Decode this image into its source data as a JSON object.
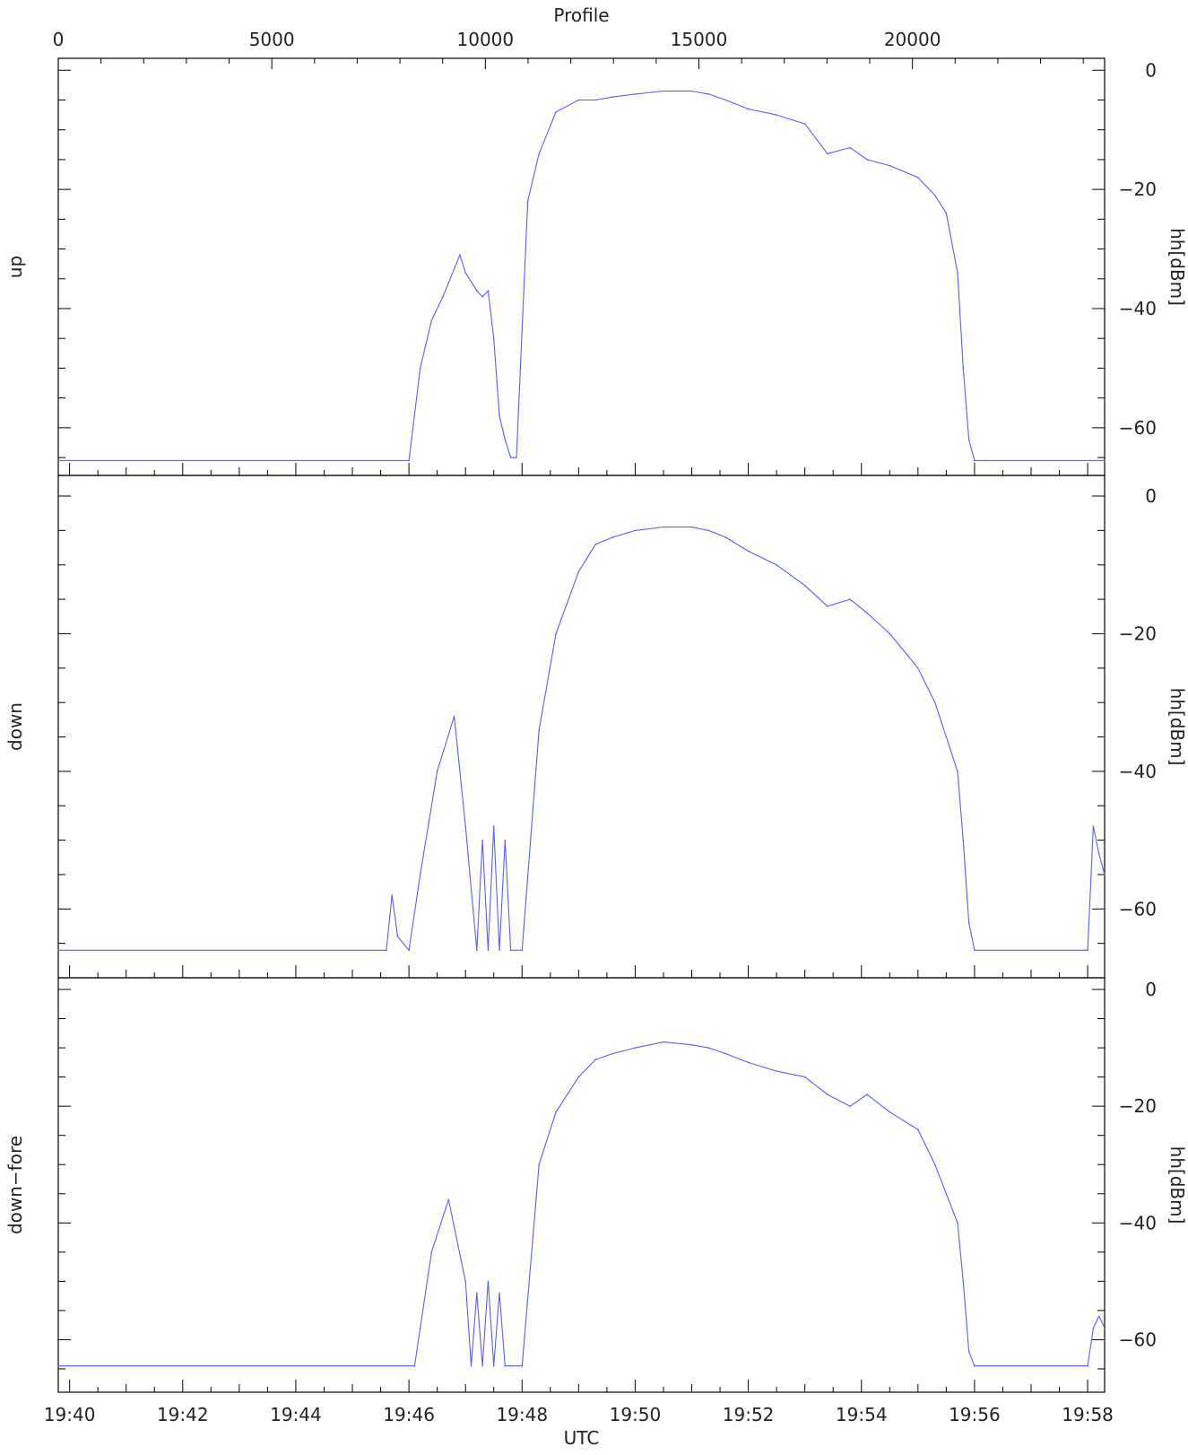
{
  "chart_data": {
    "type": "line",
    "shared_x": {
      "label": "UTC",
      "range_minutes": [
        "19:39.8",
        "19:58.3"
      ],
      "tick_labels": [
        "19:40",
        "19:42",
        "19:44",
        "19:46",
        "19:48",
        "19:50",
        "19:52",
        "19:54",
        "19:56",
        "19:58"
      ]
    },
    "top_axis": {
      "label": "Profile",
      "range": [
        0,
        24500
      ],
      "tick_labels": [
        "0",
        "5000",
        "10000",
        "15000",
        "20000"
      ]
    },
    "panels": [
      {
        "name": "up",
        "left_label": "up",
        "y_label": "hh[dBm]",
        "ylim": [
          -68,
          2
        ],
        "y_tick_labels": [
          "0",
          "−20",
          "−40",
          "−60"
        ],
        "series": [
          {
            "time": [
              "19:39.8",
              "19:46.0",
              "19:46.2",
              "19:46.4",
              "19:46.6",
              "19:46.9",
              "19:47.0",
              "19:47.2",
              "19:47.3",
              "19:47.4",
              "19:47.5",
              "19:47.6",
              "19:47.7",
              "19:47.8",
              "19:47.9",
              "19:48.1",
              "19:48.3",
              "19:48.6",
              "19:49.0",
              "19:49.3",
              "19:49.6",
              "19:50.0",
              "19:50.5",
              "19:51.0",
              "19:51.3",
              "19:51.6",
              "19:52.0",
              "19:52.5",
              "19:53.0",
              "19:53.4",
              "19:53.8",
              "19:54.1",
              "19:54.5",
              "19:55.0",
              "19:55.3",
              "19:55.5",
              "19:55.7",
              "19:55.8",
              "19:55.9",
              "19:56.0",
              "19:56.2",
              "19:58.3"
            ],
            "hh": [
              -65.5,
              -65.5,
              -50,
              -42,
              -38,
              -31,
              -34,
              -37,
              -38,
              -37,
              -45,
              -58,
              -62,
              -65,
              -65,
              -22,
              -14,
              -7,
              -5,
              -5,
              -4.5,
              -4,
              -3.5,
              -3.5,
              -4,
              -5,
              -6.5,
              -7.5,
              -9,
              -14,
              -13,
              -15,
              -16,
              -18,
              -21,
              -24,
              -34,
              -50,
              -62,
              -65.5,
              -65.5,
              -65.5
            ]
          }
        ]
      },
      {
        "name": "down",
        "left_label": "down",
        "y_label": "hh[dBm]",
        "ylim": [
          -70,
          3
        ],
        "y_tick_labels": [
          "0",
          "−20",
          "−40",
          "−60"
        ],
        "series": [
          {
            "time": [
              "19:39.8",
              "19:45.6",
              "19:45.7",
              "19:45.8",
              "19:46.0",
              "19:46.2",
              "19:46.5",
              "19:46.8",
              "19:47.0",
              "19:47.2",
              "19:47.3",
              "19:47.4",
              "19:47.5",
              "19:47.6",
              "19:47.7",
              "19:47.8",
              "19:48.0",
              "19:48.3",
              "19:48.6",
              "19:49.0",
              "19:49.3",
              "19:49.6",
              "19:50.0",
              "19:50.5",
              "19:51.0",
              "19:51.3",
              "19:51.6",
              "19:52.0",
              "19:52.5",
              "19:53.0",
              "19:53.4",
              "19:53.8",
              "19:54.1",
              "19:54.5",
              "19:55.0",
              "19:55.3",
              "19:55.5",
              "19:55.7",
              "19:55.8",
              "19:55.9",
              "19:56.0",
              "19:58.0",
              "19:58.1",
              "19:58.2",
              "19:58.3"
            ],
            "hh": [
              -66,
              -66,
              -58,
              -64,
              -66,
              -55,
              -40,
              -32,
              -48,
              -66,
              -50,
              -66,
              -48,
              -66,
              -50,
              -66,
              -66,
              -34,
              -20,
              -11,
              -7,
              -6,
              -5,
              -4.5,
              -4.5,
              -5,
              -6,
              -8,
              -10,
              -13,
              -16,
              -15,
              -17,
              -20,
              -25,
              -30,
              -35,
              -40,
              -50,
              -62,
              -66,
              -66,
              -48,
              -52,
              -55
            ]
          }
        ]
      },
      {
        "name": "down-fore",
        "left_label": "down−fore",
        "y_label": "hh[dBm]",
        "ylim": [
          -69,
          2
        ],
        "y_tick_labels": [
          "0",
          "−20",
          "−40",
          "−60"
        ],
        "series": [
          {
            "time": [
              "19:39.8",
              "19:46.1",
              "19:46.2",
              "19:46.4",
              "19:46.7",
              "19:47.0",
              "19:47.1",
              "19:47.2",
              "19:47.3",
              "19:47.4",
              "19:47.5",
              "19:47.6",
              "19:47.7",
              "19:47.8",
              "19:48.0",
              "19:48.3",
              "19:48.6",
              "19:49.0",
              "19:49.3",
              "19:49.6",
              "19:50.0",
              "19:50.5",
              "19:51.0",
              "19:51.3",
              "19:51.6",
              "19:52.0",
              "19:52.5",
              "19:53.0",
              "19:53.4",
              "19:53.8",
              "19:54.1",
              "19:54.5",
              "19:55.0",
              "19:55.3",
              "19:55.5",
              "19:55.7",
              "19:55.8",
              "19:55.9",
              "19:56.0",
              "19:58.0",
              "19:58.1",
              "19:58.2",
              "19:58.3"
            ],
            "hh": [
              -64.5,
              -64.5,
              -58,
              -45,
              -36,
              -50,
              -64.5,
              -52,
              -64.5,
              -50,
              -64.5,
              -52,
              -64.5,
              -64.5,
              -64.5,
              -30,
              -21,
              -15,
              -12,
              -11,
              -10,
              -9,
              -9.5,
              -10,
              -11,
              -12.5,
              -14,
              -15,
              -18,
              -20,
              -18,
              -21,
              -24,
              -30,
              -35,
              -40,
              -50,
              -62,
              -64.5,
              -64.5,
              -58,
              -56,
              -58
            ]
          }
        ]
      }
    ]
  }
}
